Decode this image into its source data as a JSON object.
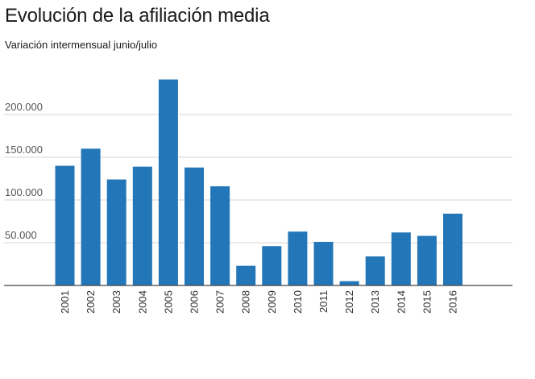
{
  "chart_data": {
    "type": "bar",
    "title": "Evolución de la afiliación media",
    "subtitle": "Variación intermensual junio/julio",
    "xlabel": "",
    "ylabel": "",
    "ylim": [
      0,
      250000
    ],
    "yticks": [
      50000,
      100000,
      150000,
      200000
    ],
    "ytick_labels": [
      "50.000",
      "100.000",
      "150.000",
      "200.000"
    ],
    "grid": true,
    "bar_color": "#2376b7",
    "categories": [
      "2001",
      "2002",
      "2003",
      "2004",
      "2005",
      "2006",
      "2007",
      "2008",
      "2009",
      "2010",
      "2011",
      "2012",
      "2013",
      "2014",
      "2015",
      "2016"
    ],
    "values": [
      140000,
      160000,
      124000,
      139000,
      241000,
      138000,
      116000,
      23000,
      46000,
      63000,
      51000,
      5000,
      34000,
      62000,
      58000,
      84000
    ]
  }
}
